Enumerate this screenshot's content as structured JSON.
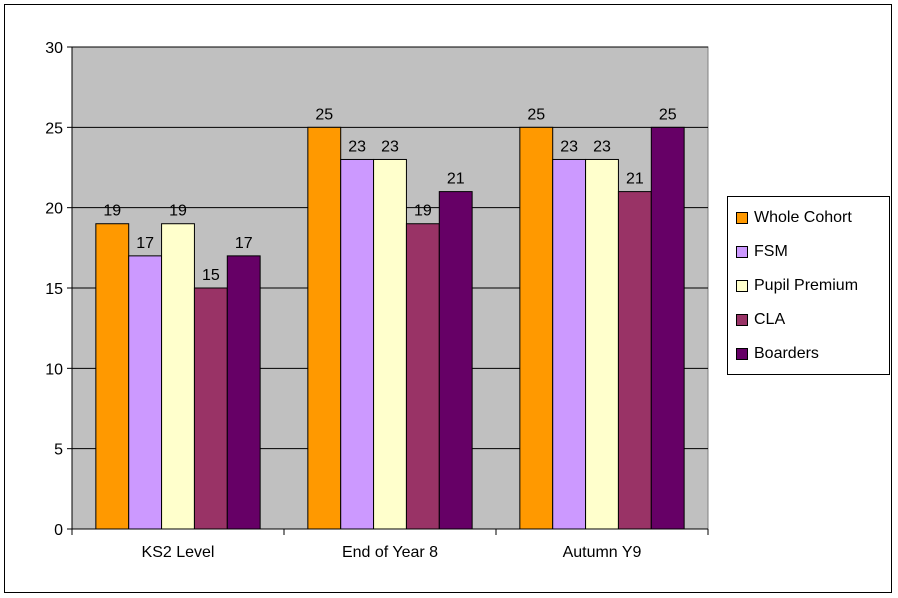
{
  "chart_data": {
    "type": "bar",
    "categories": [
      "KS2 Level",
      "End of Year 8",
      "Autumn Y9"
    ],
    "series": [
      {
        "name": "Whole Cohort",
        "values": [
          19,
          25,
          25
        ],
        "color": "#FF9900"
      },
      {
        "name": "FSM",
        "values": [
          17,
          23,
          23
        ],
        "color": "#CC99FF"
      },
      {
        "name": "Pupil Premium",
        "values": [
          19,
          23,
          23
        ],
        "color": "#FFFFCC"
      },
      {
        "name": "CLA",
        "values": [
          15,
          19,
          21
        ],
        "color": "#993366"
      },
      {
        "name": "Boarders",
        "values": [
          17,
          21,
          25
        ],
        "color": "#660066"
      }
    ],
    "yticks": [
      0,
      5,
      10,
      15,
      20,
      25,
      30
    ],
    "ylim": [
      0,
      30
    ],
    "title": "",
    "xlabel": "",
    "ylabel": "",
    "grid": true,
    "plot_background": "#C0C0C0",
    "data_labels": true,
    "legend_position": "right"
  }
}
